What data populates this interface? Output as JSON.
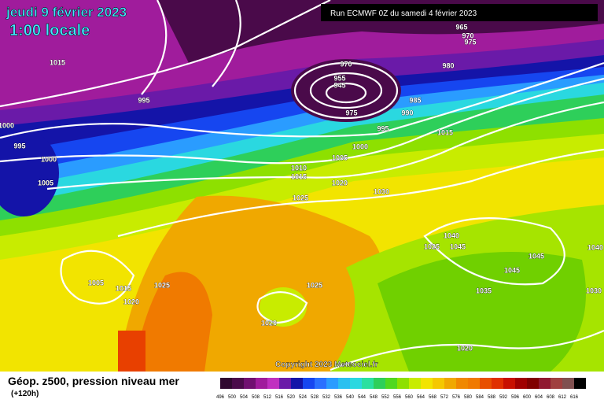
{
  "header": {
    "date": "jeudi 9 février 2023",
    "time": "1:00 locale",
    "run": "Run ECMWF 0Z du samedi 4 février 2023"
  },
  "isobar_labels": [
    1015,
    995,
    1000,
    995,
    1000,
    1005,
    970,
    955,
    945,
    975,
    965,
    970,
    975,
    980,
    985,
    990,
    995,
    1000,
    1005,
    1010,
    1015,
    1020,
    1025,
    1030,
    1015,
    1040,
    1025,
    1045,
    1045,
    1045,
    1040,
    1035,
    1030,
    1005,
    1015,
    1020,
    1025,
    1025,
    1020,
    1020
  ],
  "footer": {
    "title": "Géop. z500, pression niveau mer",
    "lead": "(+120h)",
    "copyright": "Copyright 2023 Meteociel.fr"
  },
  "legend": {
    "labels": [
      496,
      500,
      504,
      508,
      512,
      516,
      520,
      524,
      528,
      532,
      536,
      540,
      544,
      548,
      552,
      556,
      560,
      564,
      568,
      572,
      576,
      580,
      584,
      588,
      592,
      596,
      600,
      604,
      608,
      612,
      616
    ],
    "colors": [
      "#300830",
      "#4a0a4a",
      "#701070",
      "#a01c9c",
      "#c030c0",
      "#6a1aa8",
      "#1414a8",
      "#1646f0",
      "#2a70ff",
      "#2a9cff",
      "#2ac0f0",
      "#2ad8e0",
      "#2ae0a0",
      "#2ecf5a",
      "#50d820",
      "#8ee000",
      "#c8ec00",
      "#f2e400",
      "#f5c800",
      "#f0a800",
      "#f08800",
      "#f07a00",
      "#e85000",
      "#e03000",
      "#c81000",
      "#a00000",
      "#800000",
      "#901830",
      "#a04040",
      "#805050",
      "#000000"
    ]
  }
}
